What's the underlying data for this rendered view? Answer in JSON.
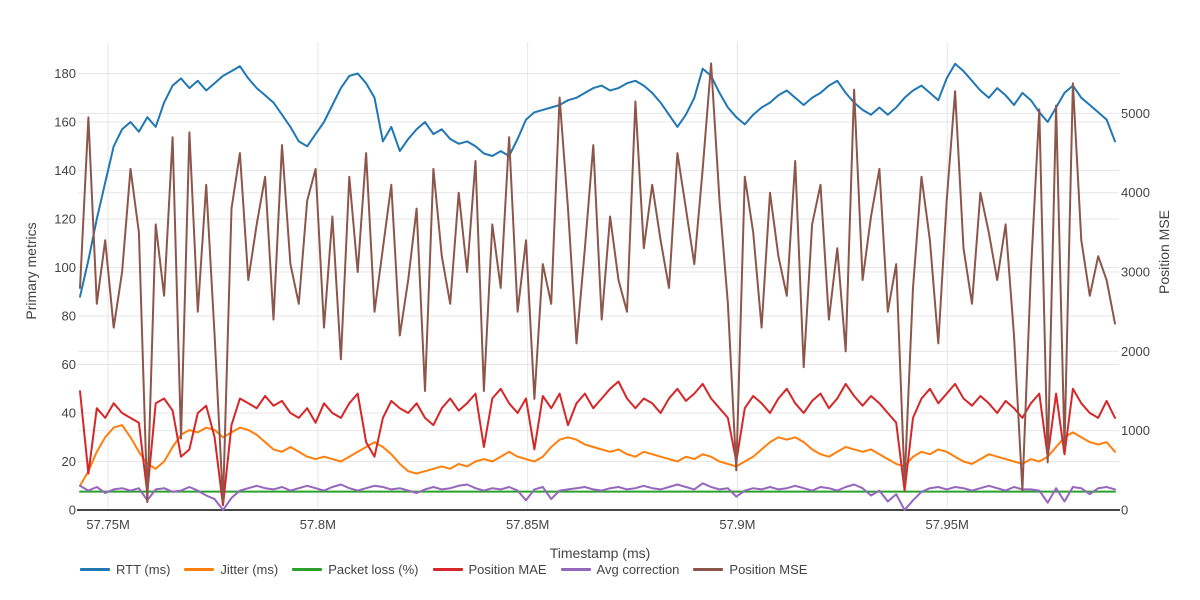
{
  "styles": {
    "background": "#ffffff",
    "grid_color": "#e6e6e6",
    "axis_line_color": "#444444",
    "text_color": "#444444"
  },
  "chart_data": {
    "type": "line",
    "title": "",
    "grid": true,
    "legend_position": "bottom-left-horizontal",
    "x_axis": {
      "label": "Timestamp (ms)",
      "tick_labels": [
        "57.75M",
        "57.8M",
        "57.85M",
        "57.9M",
        "57.95M"
      ],
      "tick_values_ms": [
        57750000,
        57800000,
        57850000,
        57900000,
        57950000
      ],
      "range_ms": [
        57743300,
        57990000
      ]
    },
    "y_axis_left": {
      "label": "Primary metrics",
      "ticks": [
        0,
        20,
        40,
        60,
        80,
        100,
        120,
        140,
        160,
        180
      ],
      "range": [
        0,
        193
      ]
    },
    "y_axis_right": {
      "label": "Position MSE",
      "ticks": [
        0,
        1000,
        2000,
        3000,
        4000,
        5000
      ],
      "range": [
        0,
        5900
      ]
    },
    "n_points": 124,
    "x_sampling": "uniform over range_ms",
    "series": [
      {
        "name": "RTT (ms)",
        "color": "#1f77b4",
        "axis": "left",
        "values": [
          88,
          103,
          120,
          135,
          150,
          157,
          160,
          156,
          162,
          158,
          168,
          175,
          178,
          174,
          177,
          173,
          176,
          179,
          181,
          183,
          178,
          174,
          171,
          168,
          163,
          158,
          152,
          150,
          155,
          160,
          167,
          174,
          179,
          180,
          176,
          170,
          152,
          158,
          148,
          153,
          157,
          160,
          155,
          157,
          153,
          151,
          152,
          150,
          147,
          146,
          148,
          146,
          153,
          161,
          164,
          165,
          166,
          167,
          169,
          170,
          172,
          174,
          175,
          173,
          174,
          176,
          177,
          175,
          172,
          168,
          163,
          158,
          163,
          170,
          182,
          179,
          172,
          166,
          162,
          159,
          163,
          166,
          168,
          171,
          173,
          170,
          167,
          170,
          172,
          175,
          177,
          172,
          168,
          165,
          163,
          166,
          163,
          166,
          170,
          173,
          175,
          172,
          169,
          178,
          184,
          181,
          177,
          173,
          170,
          174,
          171,
          167,
          172,
          169,
          164,
          160,
          166,
          172,
          175,
          170,
          167,
          164,
          161,
          152
        ]
      },
      {
        "name": "Jitter (ms)",
        "color": "#ff7f0e",
        "axis": "left",
        "values": [
          10,
          16,
          24,
          30,
          34,
          35,
          30,
          24,
          19,
          17,
          20,
          26,
          31,
          33,
          32,
          34,
          33,
          30,
          32,
          34,
          33,
          31,
          28,
          25,
          24,
          26,
          24,
          22,
          21,
          22,
          21,
          20,
          22,
          24,
          26,
          28,
          26,
          23,
          19,
          16,
          15,
          16,
          17,
          18,
          17,
          19,
          18,
          20,
          21,
          20,
          22,
          24,
          22,
          21,
          20,
          22,
          26,
          29,
          30,
          29,
          27,
          26,
          25,
          24,
          25,
          23,
          22,
          24,
          23,
          22,
          21,
          20,
          22,
          21,
          23,
          22,
          20,
          19,
          18,
          20,
          22,
          25,
          28,
          30,
          29,
          30,
          28,
          25,
          23,
          22,
          24,
          26,
          25,
          24,
          25,
          23,
          21,
          19,
          18,
          22,
          24,
          23,
          25,
          24,
          22,
          20,
          19,
          21,
          23,
          22,
          21,
          20,
          19,
          21,
          20,
          22,
          26,
          30,
          32,
          30,
          28,
          27,
          28,
          24
        ]
      },
      {
        "name": "Packet loss (%)",
        "color": "#2ca02c",
        "axis": "left",
        "constant": 7.6
      },
      {
        "name": "Position MAE",
        "color": "#d62728",
        "axis": "left",
        "values": [
          49,
          15,
          42,
          38,
          44,
          40,
          38,
          36,
          7,
          44,
          46,
          41,
          22,
          25,
          40,
          43,
          30,
          2,
          35,
          46,
          44,
          42,
          47,
          43,
          45,
          40,
          38,
          42,
          36,
          44,
          40,
          38,
          44,
          48,
          28,
          22,
          38,
          45,
          42,
          40,
          44,
          38,
          35,
          42,
          46,
          41,
          44,
          48,
          26,
          46,
          50,
          44,
          40,
          46,
          25,
          47,
          42,
          48,
          35,
          44,
          48,
          42,
          46,
          50,
          53,
          46,
          42,
          46,
          44,
          40,
          46,
          50,
          45,
          48,
          52,
          46,
          42,
          38,
          20,
          42,
          47,
          44,
          40,
          46,
          50,
          44,
          40,
          45,
          48,
          42,
          46,
          52,
          47,
          43,
          47,
          44,
          40,
          36,
          8,
          38,
          46,
          50,
          44,
          48,
          52,
          46,
          43,
          47,
          44,
          40,
          45,
          42,
          38,
          44,
          48,
          22,
          48,
          23,
          50,
          44,
          40,
          38,
          45,
          38
        ]
      },
      {
        "name": "Avg correction",
        "color": "#9467bd",
        "axis": "left",
        "values": [
          10,
          8,
          9.5,
          7,
          8.5,
          9,
          8,
          9,
          4,
          8.5,
          9,
          7.5,
          8,
          9.5,
          8,
          6,
          4.5,
          0,
          5,
          8,
          9,
          10,
          9,
          8.5,
          9.5,
          8,
          9,
          10,
          9,
          8,
          9.5,
          10.5,
          9,
          8,
          9,
          10,
          9.5,
          8.5,
          9,
          8,
          7,
          8.5,
          9.5,
          8.5,
          9,
          10,
          10.5,
          9,
          8,
          9,
          8.5,
          9.5,
          8,
          4,
          8.5,
          9.5,
          4.5,
          8,
          8.5,
          9,
          9.5,
          8.5,
          8,
          9,
          9.5,
          8.5,
          9,
          10,
          9,
          8.5,
          9.5,
          10.5,
          9.5,
          8.5,
          11,
          9.5,
          8.5,
          9,
          5.5,
          8,
          9,
          8.5,
          9.5,
          8.5,
          9,
          10,
          9,
          8,
          9.5,
          9,
          8,
          9.5,
          10.5,
          9,
          6,
          8,
          3.5,
          6.5,
          0,
          4,
          7.5,
          9,
          9.5,
          8.5,
          9.5,
          9,
          8,
          9,
          10,
          9,
          8,
          9.5,
          8.5,
          8.5,
          8,
          3,
          9,
          3.5,
          9.5,
          9,
          6.5,
          9,
          9.5,
          8.5
        ]
      },
      {
        "name": "Position MSE",
        "color": "#8c564b",
        "axis": "right",
        "values": [
          2800,
          4950,
          2600,
          3400,
          2300,
          3000,
          4300,
          3500,
          100,
          3600,
          2700,
          4700,
          900,
          4760,
          2500,
          4100,
          2200,
          100,
          3800,
          4500,
          2900,
          3600,
          4200,
          2400,
          4600,
          3100,
          2600,
          3900,
          4300,
          2300,
          3700,
          1900,
          4200,
          3000,
          4500,
          2500,
          3300,
          4100,
          2200,
          2900,
          3800,
          1500,
          4300,
          3200,
          2600,
          4000,
          3000,
          4400,
          1500,
          3600,
          2800,
          4700,
          2500,
          3400,
          1400,
          3100,
          2600,
          5200,
          3800,
          2100,
          3300,
          4600,
          2400,
          3700,
          2900,
          2500,
          5150,
          3300,
          4100,
          3400,
          2800,
          4500,
          3800,
          3100,
          4300,
          5630,
          3900,
          2600,
          500,
          4200,
          3500,
          2300,
          4000,
          3200,
          2700,
          4400,
          1800,
          3600,
          4100,
          2400,
          3300,
          2000,
          5300,
          2900,
          3700,
          4300,
          2500,
          3100,
          350,
          2800,
          4200,
          3400,
          2100,
          3900,
          5280,
          3300,
          2600,
          4000,
          3500,
          2900,
          3600,
          2200,
          250,
          3000,
          5050,
          600,
          5100,
          800,
          5380,
          3400,
          2700,
          3200,
          2900,
          2350
        ]
      }
    ]
  }
}
